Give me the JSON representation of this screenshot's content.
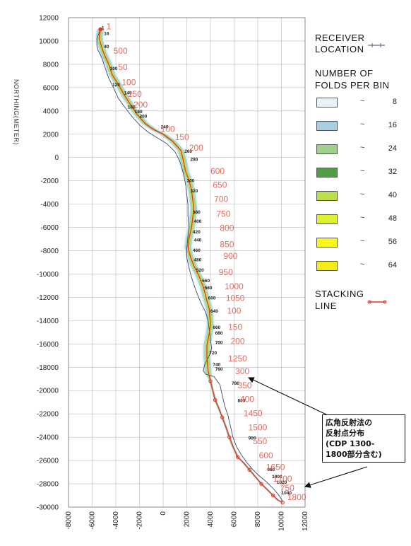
{
  "chart_data": {
    "type": "line",
    "ylabel": "NORTHING(METER)",
    "xlim": [
      -8000,
      12000
    ],
    "ylim": [
      -30000,
      12000
    ],
    "x_ticks": [
      "-8000",
      "-6000",
      "-4000",
      "-2000",
      "0",
      "2000",
      "4000",
      "6000",
      "8000",
      "10000",
      "12000"
    ],
    "y_ticks": [
      "12000",
      "10000",
      "8000",
      "6000",
      "4000",
      "2000",
      "0",
      "-2000",
      "-4000",
      "-6000",
      "-8000",
      "-10000",
      "-12000",
      "-14000",
      "-16000",
      "-18000",
      "-20000",
      "-22000",
      "-24000",
      "-26000",
      "-28000",
      "-30000"
    ],
    "stacking_line": {
      "x": [
        -5300,
        -5400,
        -5300,
        -5000,
        -4600,
        -4300,
        -3800,
        -3300,
        -2800,
        -2200,
        -1500,
        -800,
        0,
        800,
        1500,
        1700,
        1900,
        2200,
        2400,
        2500,
        2600,
        2500,
        2400,
        2200,
        2100,
        2300,
        2600,
        3000,
        3400,
        3700,
        3900,
        4000,
        3900,
        3700,
        3700,
        3800,
        4000,
        4200,
        4400,
        4700,
        5000,
        5300,
        5600,
        5900,
        6300,
        6800,
        7300,
        7800,
        8300,
        8800,
        9300,
        9700,
        10100
      ],
      "y": [
        11000,
        10300,
        9800,
        8900,
        8000,
        7100,
        6300,
        5400,
        4600,
        3700,
        2900,
        2400,
        2000,
        1400,
        600,
        -200,
        -1200,
        -2000,
        -2800,
        -3600,
        -4400,
        -5200,
        -6000,
        -6900,
        -7700,
        -8500,
        -9300,
        -10100,
        -11100,
        -12300,
        -13000,
        -14300,
        -15100,
        -16100,
        -17100,
        -18300,
        -19200,
        -20000,
        -20800,
        -21500,
        -22300,
        -23100,
        -24000,
        -24800,
        -25700,
        -26200,
        -26800,
        -27400,
        -28000,
        -28500,
        -29000,
        -29400,
        -29600
      ]
    },
    "receiver_line": {
      "x": [
        -5300,
        -5600,
        -5600,
        -5500,
        -5200,
        -5000,
        -4800,
        -4600,
        -4200,
        -3800,
        -3300,
        -2700,
        -2000,
        -1300,
        -500,
        300,
        1000,
        1400,
        1700,
        1900,
        2000,
        2100,
        2100,
        2200,
        2100,
        2000,
        2000,
        2200,
        2400,
        2700,
        3000,
        3300,
        3600,
        3800,
        3900,
        4000,
        4100,
        3900,
        3700,
        3500,
        3400,
        3600,
        4300,
        4800,
        5000,
        5200,
        5500,
        5700,
        5900,
        6200,
        6600,
        7100,
        7600,
        8100,
        8700,
        9300,
        9800,
        10100
      ],
      "y": [
        11000,
        10200,
        9600,
        9200,
        8600,
        8000,
        7400,
        6800,
        6000,
        5100,
        4400,
        3600,
        2800,
        2200,
        1700,
        1200,
        500,
        -300,
        -1300,
        -2300,
        -3200,
        -4100,
        -5000,
        -6000,
        -6800,
        -7800,
        -8600,
        -9500,
        -10300,
        -11200,
        -12000,
        -12700,
        -13300,
        -14000,
        -14800,
        -15600,
        -16400,
        -17000,
        -17400,
        -17800,
        -18300,
        -18600,
        -18800,
        -19500,
        -20400,
        -21300,
        -22200,
        -23100,
        -24000,
        -24800,
        -25500,
        -26200,
        -26800,
        -27300,
        -27800,
        -28400,
        -29000,
        -29500
      ]
    },
    "cdp_labels": [
      {
        "label": "1",
        "x": -5200,
        "y": 11000
      },
      {
        "label": "16",
        "x": -5000,
        "y": 10500
      },
      {
        "label": "40",
        "x": -5000,
        "y": 9400
      },
      {
        "label": "100",
        "x": -4500,
        "y": 7500
      },
      {
        "label": "120",
        "x": -4300,
        "y": 6100
      },
      {
        "label": "140",
        "x": -3300,
        "y": 5400
      },
      {
        "label": "160",
        "x": -3000,
        "y": 4200
      },
      {
        "label": "180",
        "x": -2400,
        "y": 3800
      },
      {
        "label": "200",
        "x": -2000,
        "y": 3400
      },
      {
        "label": "240",
        "x": -200,
        "y": 2500
      },
      {
        "label": "260",
        "x": 1800,
        "y": 400
      },
      {
        "label": "280",
        "x": 2300,
        "y": -300
      },
      {
        "label": "300",
        "x": 2000,
        "y": -2100
      },
      {
        "label": "320",
        "x": 2300,
        "y": -3000
      },
      {
        "label": "380",
        "x": 2500,
        "y": -4800
      },
      {
        "label": "400",
        "x": 2600,
        "y": -5600
      },
      {
        "label": "420",
        "x": 2500,
        "y": -6500
      },
      {
        "label": "440",
        "x": 2600,
        "y": -7200
      },
      {
        "label": "460",
        "x": 2500,
        "y": -8100
      },
      {
        "label": "480",
        "x": 2600,
        "y": -8900
      },
      {
        "label": "520",
        "x": 2800,
        "y": -9800
      },
      {
        "label": "560",
        "x": 3300,
        "y": -10700
      },
      {
        "label": "580",
        "x": 3500,
        "y": -11300
      },
      {
        "label": "600",
        "x": 3800,
        "y": -12200
      },
      {
        "label": "640",
        "x": 4000,
        "y": -13300
      },
      {
        "label": "660",
        "x": 4200,
        "y": -14700
      },
      {
        "label": "680",
        "x": 4400,
        "y": -15200
      },
      {
        "label": "700",
        "x": 4400,
        "y": -16000
      },
      {
        "label": "720",
        "x": 3900,
        "y": -16900
      },
      {
        "label": "740",
        "x": 4200,
        "y": -17900
      },
      {
        "label": "760",
        "x": 4400,
        "y": -18300
      },
      {
        "label": "780",
        "x": 5800,
        "y": -19500
      },
      {
        "label": "800",
        "x": 6300,
        "y": -21000
      },
      {
        "label": "900",
        "x": 7200,
        "y": -24200
      },
      {
        "label": "980",
        "x": 8800,
        "y": -26900
      },
      {
        "label": "1000",
        "x": 9200,
        "y": -27500
      },
      {
        "label": "1020",
        "x": 9600,
        "y": -28000
      },
      {
        "label": "1040",
        "x": 10000,
        "y": -28900
      }
    ],
    "stacking_labels": [
      {
        "label": "1",
        "x": -4800,
        "y": 11000
      },
      {
        "label": "500",
        "x": -4200,
        "y": 8900
      },
      {
        "label": "50",
        "x": -3800,
        "y": 7500
      },
      {
        "label": "100",
        "x": -3500,
        "y": 6200
      },
      {
        "label": "150",
        "x": -3000,
        "y": 5200
      },
      {
        "label": "200",
        "x": -2500,
        "y": 4300
      },
      {
        "label": "100",
        "x": -200,
        "y": 2200
      },
      {
        "label": "150",
        "x": 1000,
        "y": 1500
      },
      {
        "label": "200",
        "x": 2200,
        "y": 600
      },
      {
        "label": "600",
        "x": 4000,
        "y": -1400
      },
      {
        "label": "650",
        "x": 4200,
        "y": -2600
      },
      {
        "label": "700",
        "x": 4300,
        "y": -3800
      },
      {
        "label": "750",
        "x": 4500,
        "y": -5100
      },
      {
        "label": "800",
        "x": 4800,
        "y": -6300
      },
      {
        "label": "850",
        "x": 4800,
        "y": -7700
      },
      {
        "label": "900",
        "x": 5100,
        "y": -8700
      },
      {
        "label": "950",
        "x": 4700,
        "y": -10100
      },
      {
        "label": "1000",
        "x": 5200,
        "y": -11300
      },
      {
        "label": "1050",
        "x": 5300,
        "y": -12300
      },
      {
        "label": "100",
        "x": 5400,
        "y": -13400
      },
      {
        "label": "150",
        "x": 5500,
        "y": -14800
      },
      {
        "label": "200",
        "x": 5700,
        "y": -16000
      },
      {
        "label": "1250",
        "x": 5500,
        "y": -17500
      },
      {
        "label": "300",
        "x": 6100,
        "y": -18600
      },
      {
        "label": "350",
        "x": 6300,
        "y": -19800
      },
      {
        "label": "400",
        "x": 6500,
        "y": -21000
      },
      {
        "label": "1450",
        "x": 6800,
        "y": -22200
      },
      {
        "label": "1500",
        "x": 7200,
        "y": -23400
      },
      {
        "label": "550",
        "x": 7600,
        "y": -24600
      },
      {
        "label": "600",
        "x": 8100,
        "y": -25800
      },
      {
        "label": "1650",
        "x": 8700,
        "y": -26800
      },
      {
        "label": "1700",
        "x": 9300,
        "y": -27800
      },
      {
        "label": "750",
        "x": 9900,
        "y": -28600
      },
      {
        "label": "1800",
        "x": 10500,
        "y": -29400
      }
    ],
    "legend": {
      "receiver_title": [
        "RECEIVER",
        "LOCATION"
      ],
      "folds_title": [
        "NUMBER OF",
        "FOLDS PER BIN"
      ],
      "folds": [
        {
          "value": "8",
          "color": "#e6f4f8"
        },
        {
          "value": "16",
          "color": "#a8cfe0"
        },
        {
          "value": "24",
          "color": "#9fd08c"
        },
        {
          "value": "32",
          "color": "#4e9f42"
        },
        {
          "value": "40",
          "color": "#b9e04a"
        },
        {
          "value": "48",
          "color": "#dff02c"
        },
        {
          "value": "56",
          "color": "#fbf51c"
        },
        {
          "value": "64",
          "color": "#f5ec17"
        }
      ],
      "stacking_title": [
        "STACKING",
        "LINE"
      ],
      "tilde": "~"
    },
    "annotation": [
      "広角反射法の",
      "反射点分布",
      "(CDP 1300-",
      "1800部分含む)"
    ]
  }
}
